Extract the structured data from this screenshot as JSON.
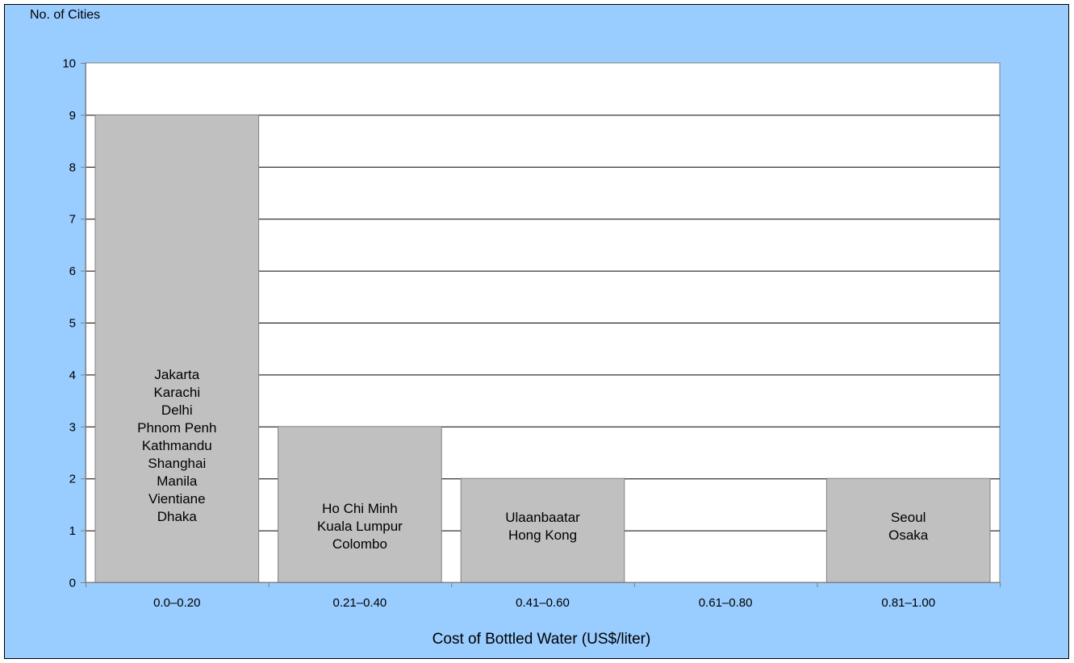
{
  "chart_data": {
    "type": "bar",
    "title": "",
    "ylabel": "No. of Cities",
    "xlabel": "Cost of Bottled Water (US$/liter)",
    "ylim": [
      0,
      10
    ],
    "yticks": [
      "0",
      "1",
      "2",
      "3",
      "4",
      "5",
      "6",
      "7",
      "8",
      "9",
      "10"
    ],
    "categories": [
      "0.0–0.20",
      "0.21–0.40",
      "0.41–0.60",
      "0.61–0.80",
      "0.81–1.00"
    ],
    "values": [
      9,
      3,
      2,
      0,
      2
    ],
    "bar_labels": [
      [
        "Jakarta",
        "Karachi",
        "Delhi",
        "Phnom Penh",
        "Kathmandu",
        "Shanghai",
        "Manila",
        "Vientiane",
        "Dhaka"
      ],
      [
        "Ho Chi Minh",
        "Kuala Lumpur",
        "Colombo"
      ],
      [
        "Ulaanbaatar",
        "Hong Kong"
      ],
      [],
      [
        "Seoul",
        "Osaka"
      ]
    ],
    "grid": true,
    "legend": "none",
    "colors": {
      "background": "#99ccff",
      "plot_area": "#ffffff",
      "bar_fill": "#c0c0c0",
      "bar_stroke": "#808080",
      "grid": "#000000"
    }
  }
}
